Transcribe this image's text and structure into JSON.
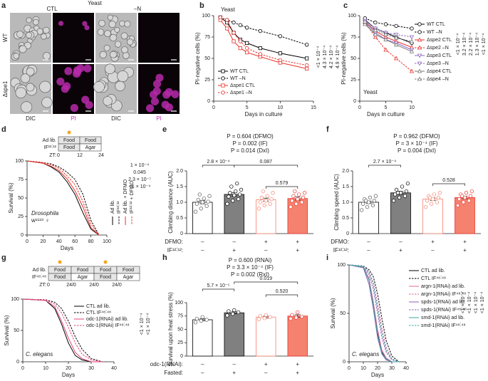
{
  "panel_a": {
    "panel": "a",
    "organism": "Yeast",
    "conditions": [
      "CTL",
      "–N"
    ],
    "strains": [
      "WT",
      "Δspe1"
    ],
    "channels": [
      "DIC",
      "PI",
      "DIC",
      "PI"
    ]
  },
  "chart_data": [
    {
      "type": "line",
      "panel": "b",
      "annotation": [
        "Yeast"
      ],
      "xlabel": "Days in culture",
      "ylabel": "PI-negative cells (%)",
      "x": [
        1,
        2,
        3,
        4,
        5,
        7,
        10,
        14
      ],
      "xlim": [
        0,
        15
      ],
      "xticks": [
        0,
        5,
        10,
        15
      ],
      "ylim": [
        0,
        100
      ],
      "yticks": [
        0,
        25,
        50,
        75,
        100
      ],
      "markers": true,
      "legend": "inside",
      "series": [
        {
          "name": "WT CTL",
          "color": "#000000",
          "dashed": false,
          "marker": "square",
          "values": [
            98,
            92,
            80,
            72,
            68,
            62,
            56,
            50
          ]
        },
        {
          "name": "WT –N",
          "color": "#000000",
          "dashed": true,
          "marker": "circle",
          "values": [
            98,
            95,
            92,
            89,
            86,
            82,
            76,
            66
          ]
        },
        {
          "name": "Δspe1 CTL",
          "color": "#e8322c",
          "dashed": false,
          "marker": "square",
          "values": [
            95,
            85,
            70,
            62,
            57,
            52,
            45,
            38
          ]
        },
        {
          "name": "Δspe1 –N",
          "color": "#e8322c",
          "dashed": true,
          "marker": "circle",
          "values": [
            98,
            95,
            80,
            70,
            62,
            55,
            48,
            42
          ]
        }
      ],
      "p_values": [
        "<1 × 10⁻⁴",
        "4.3 × 10⁻⁴",
        "4.2 × 10⁻⁴",
        "4.9 × 10⁻⁴"
      ]
    },
    {
      "type": "line",
      "panel": "c",
      "annotation": [
        "Yeast"
      ],
      "xlabel": "Days in culture",
      "ylabel": "PI-negative cells (%)",
      "x": [
        1,
        3,
        5,
        7,
        10
      ],
      "xlim": [
        0,
        10
      ],
      "xticks": [
        0,
        5,
        10
      ],
      "ylim": [
        0,
        100
      ],
      "yticks": [
        0,
        25,
        50,
        75,
        100
      ],
      "markers": true,
      "legend": "right",
      "series": [
        {
          "name": "WT CTL",
          "color": "#000000",
          "dashed": false,
          "marker": "circle",
          "values": [
            95,
            85,
            80,
            75,
            68
          ]
        },
        {
          "name": "WT –N",
          "color": "#000000",
          "dashed": true,
          "marker": "circle",
          "values": [
            97,
            92,
            90,
            88,
            85
          ]
        },
        {
          "name": "Δspe2 CTL",
          "color": "#e8322c",
          "dashed": false,
          "marker": "triangle",
          "values": [
            93,
            82,
            75,
            70,
            63
          ]
        },
        {
          "name": "Δspe2 –N",
          "color": "#e8322c",
          "dashed": true,
          "marker": "triangle",
          "values": [
            92,
            75,
            60,
            50,
            35
          ]
        },
        {
          "name": "Δspe3 CTL",
          "color": "#8e6bbf",
          "dashed": false,
          "marker": "triangle-down",
          "values": [
            92,
            80,
            72,
            68,
            60
          ]
        },
        {
          "name": "Δspe3 –N",
          "color": "#8e6bbf",
          "dashed": true,
          "marker": "triangle-down",
          "values": [
            94,
            85,
            80,
            78,
            75
          ]
        },
        {
          "name": "Δspe4 CTL",
          "color": "#7a7a7a",
          "dashed": false,
          "marker": "triangle",
          "values": [
            90,
            78,
            72,
            66,
            58
          ]
        },
        {
          "name": "Δspe4 –N",
          "color": "#7a7a7a",
          "dashed": true,
          "marker": "triangle",
          "values": [
            93,
            83,
            78,
            74,
            70
          ]
        }
      ],
      "p_values": [
        "<1 × 10⁻⁴",
        "3.2 × 10⁻⁴",
        "2.2 × 10⁻⁴",
        "1.3 × 10⁻⁴",
        "<1 × 10⁻⁴"
      ]
    },
    {
      "type": "line",
      "panel": "d",
      "annotation": [
        "Drosophila",
        "w¹¹¹⁸ ♀"
      ],
      "xlabel": "Days",
      "ylabel": "Survival (%)",
      "x": [
        0,
        20,
        30,
        40,
        50,
        60,
        70,
        80,
        90
      ],
      "xlim": [
        0,
        100
      ],
      "xticks": [
        0,
        20,
        40,
        60,
        80,
        100
      ],
      "ylim": [
        0,
        100
      ],
      "yticks": [
        0,
        25,
        50,
        75,
        100
      ],
      "markers": false,
      "legend": "rotated",
      "schedule": {
        "rows": [
          {
            "label": "Ad lib.",
            "cells": [
              "Food",
              "Food"
            ]
          },
          {
            "label": "IF¹²˸¹²",
            "cells": [
              "Food",
              "Agar"
            ]
          }
        ],
        "zt_label": "ZT:",
        "zt": [
          "0",
          "12",
          "24"
        ]
      },
      "series": [
        {
          "name": "Ad lib.",
          "color": "#000000",
          "dashed": false,
          "values": [
            100,
            97,
            92,
            85,
            72,
            55,
            30,
            8,
            0
          ]
        },
        {
          "name": "IF¹²˸¹²",
          "color": "#000000",
          "dashed": true,
          "values": [
            100,
            98,
            96,
            92,
            85,
            75,
            55,
            20,
            0
          ]
        },
        {
          "name": "Ad lib. + DFMO",
          "color": "#e8322c",
          "dashed": false,
          "values": [
            100,
            97,
            93,
            87,
            76,
            60,
            38,
            10,
            0
          ]
        },
        {
          "name": "IF¹²˸¹² + DFMO",
          "color": "#e8322c",
          "dashed": true,
          "values": [
            100,
            98,
            95,
            90,
            80,
            68,
            45,
            15,
            0
          ]
        }
      ],
      "p_values": [
        "1 × 10⁻⁴",
        "0.045",
        "2.3 × 10⁻⁷",
        "<1 × 10⁻⁴"
      ]
    },
    {
      "type": "bar",
      "panel": "e",
      "ylabel": "Climbing distance (AUC)",
      "ylim": [
        0,
        2
      ],
      "yticks": [
        0,
        0.5,
        {
          "value": 1,
          "label": "1.0"
        },
        1.5,
        {
          "value": 2,
          "label": "2.0"
        }
      ],
      "values": [
        1.0,
        1.25,
        1.08,
        1.12
      ],
      "errors": [
        0.05,
        0.06,
        0.05,
        0.05
      ],
      "colors": [
        "#ffffff",
        "#808080",
        "#ffffff",
        "#f4826e"
      ],
      "edge_colors": [
        "#000000",
        "#000000",
        "#f4826e",
        "#e8322c"
      ],
      "points": [
        [
          0.7,
          0.8,
          0.88,
          0.95,
          1.0,
          1.02,
          1.08,
          1.12,
          1.2,
          1.25
        ],
        [
          0.95,
          1.05,
          1.1,
          1.18,
          1.22,
          1.25,
          1.3,
          1.35,
          1.4,
          1.5,
          1.6
        ],
        [
          0.8,
          0.9,
          0.95,
          1.0,
          1.05,
          1.1,
          1.15,
          1.2,
          1.3,
          1.35
        ],
        [
          0.85,
          0.95,
          1.0,
          1.05,
          1.1,
          1.15,
          1.2,
          1.25,
          1.3,
          1.35
        ]
      ],
      "rows": [
        {
          "label": "DFMO:",
          "signs": [
            "–",
            "–",
            "+",
            "+"
          ]
        },
        {
          "label": "IF¹²˸¹²:",
          "signs": [
            "–",
            "+",
            "–",
            "+"
          ]
        }
      ],
      "stats": [
        "P = 0.604 (DFMO)",
        "P = 0.002 (IF)",
        "P = 0.014 (DxI)"
      ],
      "comparisons": [
        "2.8 × 10⁻⁴",
        "0.087",
        "0.579"
      ]
    },
    {
      "type": "bar",
      "panel": "f",
      "ylabel": "Climbing speed (AUC)",
      "ylim": [
        0,
        2
      ],
      "yticks": [
        0,
        0.5,
        {
          "value": 1,
          "label": "1.0"
        },
        1.5,
        {
          "value": 2,
          "label": "2.0"
        }
      ],
      "values": [
        1.0,
        1.3,
        1.1,
        1.15
      ],
      "errors": [
        0.04,
        0.05,
        0.04,
        0.04
      ],
      "colors": [
        "#ffffff",
        "#808080",
        "#ffffff",
        "#f4826e"
      ],
      "edge_colors": [
        "#000000",
        "#000000",
        "#f4826e",
        "#e8322c"
      ],
      "points": [
        [
          0.75,
          0.85,
          0.9,
          0.95,
          1.0,
          1.05,
          1.1,
          1.15,
          1.2,
          1.05
        ],
        [
          1.05,
          1.15,
          1.2,
          1.25,
          1.3,
          1.35,
          1.4,
          1.5,
          1.6,
          1.3
        ],
        [
          0.85,
          0.95,
          1.0,
          1.05,
          1.1,
          1.15,
          1.2,
          1.25,
          1.3,
          1.15
        ],
        [
          0.9,
          1.0,
          1.05,
          1.1,
          1.15,
          1.2,
          1.25,
          1.3,
          1.35,
          1.2
        ]
      ],
      "rows": [
        {
          "label": "DFMO:",
          "signs": [
            "–",
            "–",
            "+",
            "+"
          ]
        },
        {
          "label": "IF¹²˸¹²:",
          "signs": [
            "–",
            "+",
            "–",
            "+"
          ]
        }
      ],
      "stats": [
        "P = 0.962 (DFMO)",
        "P = 3 × 10⁻⁴ (IF)",
        "P = 0.004 (DxI)"
      ],
      "comparisons": [
        "2.7 × 10⁻⁴",
        "0.528"
      ]
    },
    {
      "type": "line",
      "panel": "g",
      "annotation": [
        "C. elegans"
      ],
      "xlabel": "Days",
      "ylabel": "Survival (%)",
      "x": [
        0,
        10,
        14,
        17,
        20,
        23,
        26,
        30,
        35
      ],
      "xlim": [
        0,
        40
      ],
      "xticks": [
        0,
        10,
        20,
        30,
        40
      ],
      "ylim": [
        0,
        100
      ],
      "yticks": [
        0,
        50,
        100
      ],
      "markers": false,
      "legend": "inside",
      "schedule": {
        "rows": [
          {
            "label": "Ad lib.",
            "cells": [
              "Food",
              "Food",
              "Food",
              "Food"
            ]
          },
          {
            "label": "IF⁴⁸˸⁴⁸",
            "cells": [
              "Food",
              "Agar",
              "Food",
              "Agar"
            ]
          }
        ],
        "zt_label": "ZT:",
        "zt": [
          "0",
          "24/0",
          "24/0",
          "24/0"
        ]
      },
      "series": [
        {
          "name": "CTL ad lib.",
          "color": "#000000",
          "dashed": false,
          "values": [
            100,
            98,
            85,
            60,
            30,
            10,
            3,
            0,
            0
          ]
        },
        {
          "name": "CTL IF⁴⁸˸⁴⁸",
          "color": "#000000",
          "dashed": true,
          "values": [
            100,
            99,
            95,
            85,
            65,
            40,
            20,
            5,
            0
          ]
        },
        {
          "name": "odc-1(RNAi) ad lib.",
          "color": "#e0457b",
          "dashed": false,
          "values": [
            100,
            98,
            88,
            65,
            38,
            15,
            5,
            0,
            0
          ]
        },
        {
          "name": "odc-1(RNAi) IF⁴⁸˸⁴⁸",
          "color": "#e0457b",
          "dashed": true,
          "values": [
            100,
            99,
            92,
            78,
            55,
            30,
            12,
            3,
            0
          ]
        }
      ],
      "p_values": [
        "<1 × 10⁻⁴",
        "<1 × 10⁻⁴"
      ]
    },
    {
      "type": "bar",
      "panel": "h",
      "ylabel": "Survival upon heat stress (%)",
      "ylim": [
        0,
        100
      ],
      "yticks": [
        0,
        25,
        50,
        75,
        100
      ],
      "values": [
        68,
        81,
        73,
        75
      ],
      "errors": [
        2,
        2,
        1.5,
        2.5
      ],
      "colors": [
        "#ffffff",
        "#808080",
        "#ffffff",
        "#f4826e"
      ],
      "edge_colors": [
        "#000000",
        "#000000",
        "#f4826e",
        "#e8322c"
      ],
      "points": [
        [
          63,
          66,
          68,
          70,
          73
        ],
        [
          76,
          79,
          82,
          84,
          86
        ],
        [
          69,
          71,
          73,
          75,
          77
        ],
        [
          70,
          72,
          74,
          77,
          82
        ]
      ],
      "rows": [
        {
          "label": "odc-1(RNAi):",
          "signs": [
            "–",
            "–",
            "+",
            "+"
          ]
        },
        {
          "label": "Fasted:",
          "signs": [
            "–",
            "+",
            "–",
            "+"
          ]
        }
      ],
      "stats": [
        "P = 0.600 (RNAi)",
        "P = 3.3 × 10⁻⁴ (IF)",
        "P = 0.002 (RxI)"
      ],
      "comparisons": [
        "5.7 × 10⁻⁵",
        "0.019",
        "0.520"
      ]
    },
    {
      "type": "line",
      "panel": "i",
      "annotation": [
        "C. elegans"
      ],
      "xlabel": "Days",
      "ylabel": "Survival (%)",
      "x": [
        0,
        10,
        14,
        17,
        20,
        23,
        26,
        30,
        35
      ],
      "xlim": [
        0,
        40
      ],
      "xticks": [
        0,
        10,
        20,
        30,
        40
      ],
      "ylim": [
        0,
        100
      ],
      "yticks": [
        0,
        50,
        100
      ],
      "markers": false,
      "legend": "right",
      "series": [
        {
          "name": "CTL ad lib.",
          "color": "#000000",
          "dashed": false,
          "values": [
            100,
            98,
            85,
            60,
            30,
            10,
            3,
            0,
            0
          ]
        },
        {
          "name": "CTL IF⁴⁸˸⁴⁸",
          "color": "#000000",
          "dashed": true,
          "values": [
            100,
            99,
            95,
            88,
            70,
            45,
            22,
            6,
            0
          ]
        },
        {
          "name": "argn-1(RNAi) ad lib.",
          "color": "#e0679b",
          "dashed": false,
          "values": [
            100,
            98,
            86,
            62,
            33,
            12,
            4,
            0,
            0
          ]
        },
        {
          "name": "argn-1(RNAi) IF⁴⁸˸⁴⁸",
          "color": "#e0679b",
          "dashed": true,
          "values": [
            100,
            99,
            93,
            82,
            60,
            35,
            15,
            3,
            0
          ]
        },
        {
          "name": "spds-1(RNAi) ad lib.",
          "color": "#8a5fb5",
          "dashed": false,
          "values": [
            100,
            97,
            80,
            55,
            25,
            8,
            2,
            0,
            0
          ]
        },
        {
          "name": "spds-1(RNAi) IF⁴⁸˸⁴⁸",
          "color": "#8a5fb5",
          "dashed": true,
          "values": [
            100,
            98,
            90,
            75,
            50,
            25,
            10,
            2,
            0
          ]
        },
        {
          "name": "smd-1(RNAi) ad lib.",
          "color": "#3aa6a0",
          "dashed": false,
          "values": [
            100,
            98,
            84,
            58,
            28,
            9,
            3,
            0,
            0
          ]
        },
        {
          "name": "smd-1(RNAi) IF⁴⁸˸⁴⁸",
          "color": "#3aa6a0",
          "dashed": true,
          "values": [
            100,
            99,
            92,
            80,
            55,
            30,
            12,
            3,
            0
          ]
        }
      ],
      "p_values": [
        "<1 × 10⁻⁴",
        "<1 × 10⁻⁴",
        "<1 × 10⁻⁴",
        "<1 × 10⁻⁴"
      ]
    }
  ]
}
